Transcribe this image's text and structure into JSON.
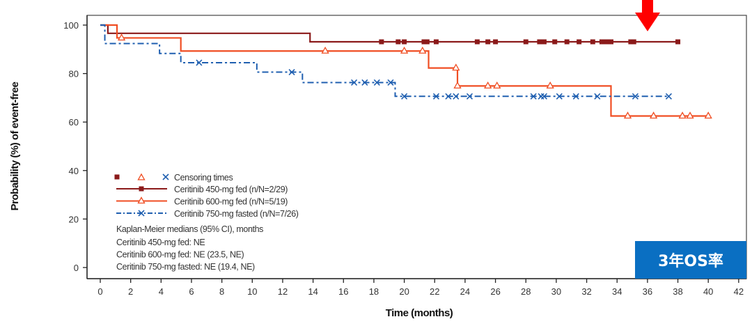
{
  "chart_data": {
    "type": "line",
    "subtype": "kaplan-meier step",
    "xlabel": "Time (months)",
    "ylabel": "Probability (%) of event-free",
    "xlim": [
      0,
      42
    ],
    "ylim": [
      0,
      100
    ],
    "xticks": [
      0,
      2,
      4,
      6,
      8,
      10,
      12,
      14,
      16,
      18,
      20,
      22,
      24,
      26,
      28,
      30,
      32,
      34,
      36,
      38,
      40,
      42
    ],
    "yticks": [
      0,
      20,
      40,
      60,
      80,
      100
    ],
    "grid": false,
    "legend_position": "bottom-left",
    "censor_legend_label": "Censoring times",
    "series": [
      {
        "name": "Ceritinib 450-mg fed (n/N=2/29)",
        "color": "#8b1a1a",
        "marker": "square",
        "dash": "solid",
        "steps": [
          [
            0,
            100
          ],
          [
            0.5,
            96.6
          ],
          [
            13.8,
            93.1
          ],
          [
            38.0,
            93.1
          ]
        ],
        "censored": [
          18.5,
          19.6,
          20.0,
          21.3,
          21.5,
          22.1,
          24.8,
          25.5,
          26.0,
          28.0,
          28.9,
          29.2,
          29.9,
          30.7,
          31.5,
          32.4,
          33.0,
          33.3,
          33.6,
          34.9,
          35.1,
          38.0
        ]
      },
      {
        "name": "Ceritinib 600-mg fed (n/N=5/19)",
        "color": "#f04e23",
        "marker": "triangle",
        "dash": "solid",
        "steps": [
          [
            0,
            100
          ],
          [
            1.1,
            94.7
          ],
          [
            5.3,
            89.3
          ],
          [
            21.6,
            82.3
          ],
          [
            23.5,
            74.9
          ],
          [
            33.6,
            62.5
          ],
          [
            40.0,
            62.5
          ]
        ],
        "censored": [
          1.4,
          14.8,
          20.0,
          21.2,
          23.4,
          23.5,
          25.5,
          26.1,
          29.6,
          34.7,
          36.4,
          38.3,
          38.8,
          40.0
        ]
      },
      {
        "name": "Ceritinib 750-mg fasted (n/N=7/26)",
        "color": "#1f5fb0",
        "marker": "x",
        "dash": "dash-dot",
        "steps": [
          [
            0,
            100
          ],
          [
            0.3,
            92.4
          ],
          [
            3.9,
            88.3
          ],
          [
            5.3,
            84.5
          ],
          [
            10.3,
            80.6
          ],
          [
            13.3,
            76.3
          ],
          [
            19.4,
            70.6
          ],
          [
            37.4,
            70.6
          ]
        ],
        "censored": [
          6.5,
          12.6,
          16.7,
          17.4,
          18.2,
          19.1,
          20.0,
          22.1,
          22.9,
          23.4,
          24.3,
          28.5,
          29.0,
          29.2,
          30.2,
          31.3,
          32.7,
          35.2,
          37.4
        ]
      }
    ],
    "medians_title": "Kaplan-Meier medians (95% CI), months",
    "medians": [
      "Ceritinib 450-mg fed: NE",
      "Ceritinib 600-mg fed: NE (23.5, NE)",
      "Ceritinib 750-mg fasted: NE (19.4, NE)"
    ]
  },
  "annotation": {
    "label": "3年OS率",
    "box_color": "#0a6fc2",
    "arrow_color": "#ff0000",
    "arrow_at_month": 36
  }
}
